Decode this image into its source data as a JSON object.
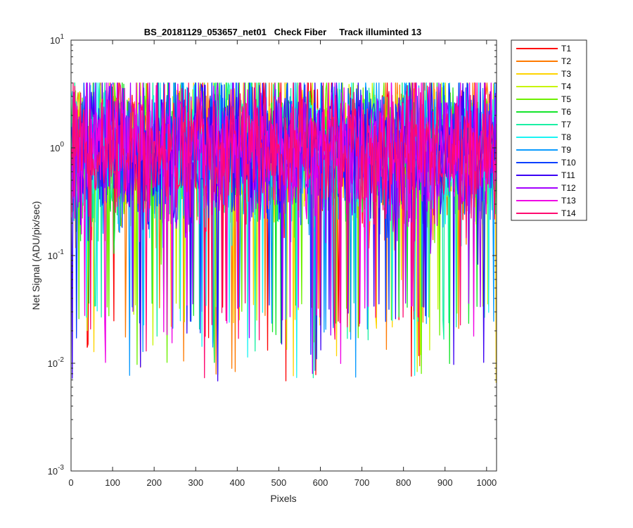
{
  "chart_data": {
    "type": "line",
    "title": "BS_20181129_053657_net01   Check Fiber     Track illuminted 13",
    "xlabel": "Pixels",
    "ylabel": "Net Signal (ADU/pix/sec)",
    "xlim": [
      0,
      1024
    ],
    "ylim": [
      0.001,
      10
    ],
    "yscale": "log",
    "grid": false,
    "legend_position": "outside-top-right",
    "x_ticks": [
      "0",
      "100",
      "200",
      "300",
      "400",
      "500",
      "600",
      "700",
      "800",
      "900",
      "1000"
    ],
    "y_ticks": [
      {
        "base": "10",
        "exp": "1"
      },
      {
        "base": "10",
        "exp": "0"
      },
      {
        "base": "10",
        "exp": "-1"
      },
      {
        "base": "10",
        "exp": "-2"
      },
      {
        "base": "10",
        "exp": "-3"
      }
    ],
    "x_range_points": [
      1,
      1024
    ],
    "signal_summary": {
      "typical_low": 0.1,
      "typical_high": 3.0,
      "min": 0.0065,
      "max": 4.0
    },
    "series": [
      {
        "name": "T1",
        "color": "#ff0000"
      },
      {
        "name": "T2",
        "color": "#ff7a00"
      },
      {
        "name": "T3",
        "color": "#ffd400"
      },
      {
        "name": "T4",
        "color": "#c8f500"
      },
      {
        "name": "T5",
        "color": "#6df000"
      },
      {
        "name": "T6",
        "color": "#14e52b"
      },
      {
        "name": "T7",
        "color": "#1af0a4"
      },
      {
        "name": "T8",
        "color": "#1af4f4"
      },
      {
        "name": "T9",
        "color": "#0a9bff"
      },
      {
        "name": "T10",
        "color": "#0a3fff"
      },
      {
        "name": "T11",
        "color": "#3b00f5"
      },
      {
        "name": "T12",
        "color": "#a400ff"
      },
      {
        "name": "T13",
        "color": "#f000e4"
      },
      {
        "name": "T14",
        "color": "#ff0a70"
      }
    ]
  }
}
